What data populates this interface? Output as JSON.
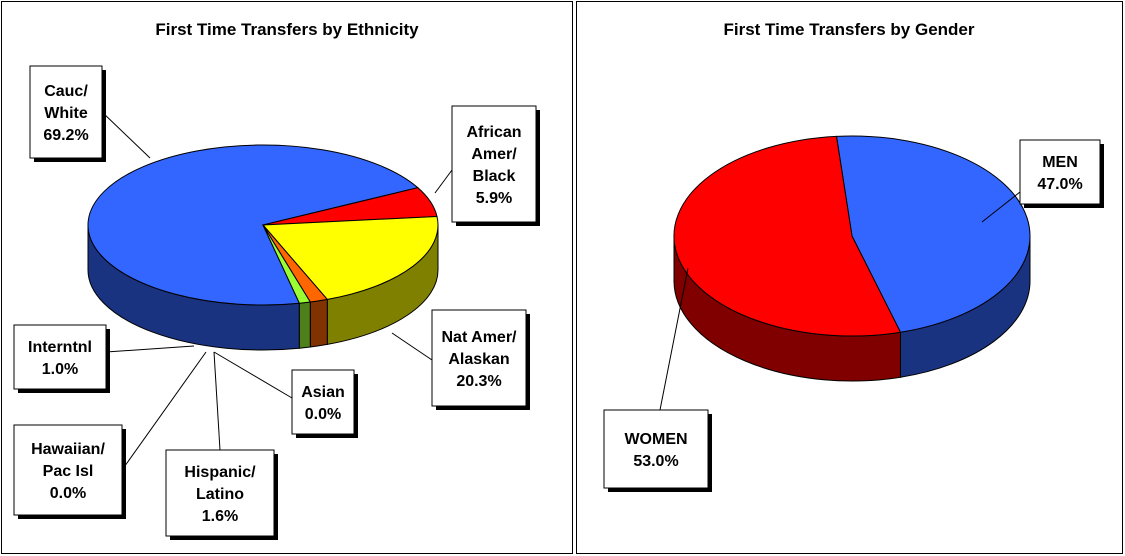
{
  "chart_data": [
    {
      "type": "pie",
      "title": "First Time Transfers by Ethnicity",
      "categories": [
        "Cauc/\nWhite",
        "African\nAmer/\nBlack",
        "Nat Amer/\nAlaskan",
        "Asian",
        "Hispanic/\nLatino",
        "Hawaiian/\nPac Isl",
        "Interntnl"
      ],
      "values": [
        69.2,
        5.9,
        20.3,
        0.0,
        1.6,
        0.0,
        1.0
      ],
      "value_labels": [
        "69.2%",
        "5.9%",
        "20.3%",
        "0.0%",
        "1.6%",
        "0.0%",
        "1.0%"
      ],
      "colors": [
        "#3366ff",
        "#ff0000",
        "#ffff00",
        "#00ccff",
        "#ff6600",
        "#993366",
        "#99ff33"
      ]
    },
    {
      "type": "pie",
      "title": "First Time Transfers by Gender",
      "categories": [
        "MEN",
        "WOMEN"
      ],
      "values": [
        47.0,
        53.0
      ],
      "value_labels": [
        "47.0%",
        "53.0%"
      ],
      "colors": [
        "#3366ff",
        "#ff0000"
      ]
    }
  ]
}
